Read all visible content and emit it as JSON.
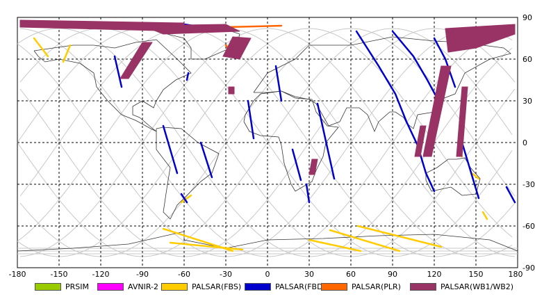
{
  "map": {
    "type": "world-coverage-map",
    "x_ticks": [
      "-180",
      "-150",
      "-120",
      "-90",
      "-60",
      "-30",
      "0",
      "30",
      "60",
      "90",
      "120",
      "150",
      "180"
    ],
    "y_ticks": [
      "90",
      "60",
      "30",
      "0",
      "-30",
      "-60",
      "-90"
    ],
    "x_range": [
      -180,
      180
    ],
    "y_range": [
      -90,
      90
    ],
    "grid": true
  },
  "legend": {
    "items": [
      {
        "label": "PRSIM",
        "color": "#99cc00"
      },
      {
        "label": "AVNIR-2",
        "color": "#ff00ff"
      },
      {
        "label": "PALSAR(FBS)",
        "color": "#ffcc00"
      },
      {
        "label": "PALSAR(FBD)",
        "color": "#0000cc"
      },
      {
        "label": "PALSAR(PLR)",
        "color": "#ff6600"
      },
      {
        "label": "PALSAR(WB1/WB2)",
        "color": "#993366"
      }
    ]
  },
  "chart_data": {
    "type": "scatter",
    "xlabel": "",
    "ylabel": "",
    "xlim": [
      -180,
      180
    ],
    "ylim": [
      -90,
      90
    ],
    "grid": true,
    "legend_position": "bottom",
    "series": [
      {
        "name": "PALSAR(FBS)",
        "color": "#ffcc00",
        "kind": "line",
        "paths": [
          [
            [
              -168,
              75
            ],
            [
              -158,
              62
            ]
          ],
          [
            [
              -142,
              70
            ],
            [
              -147,
              58
            ]
          ],
          [
            [
              -70,
              -72
            ],
            [
              -18,
              -77
            ]
          ],
          [
            [
              -75,
              -62
            ],
            [
              -25,
              -78
            ]
          ],
          [
            [
              -55,
              -38
            ],
            [
              -62,
              -43
            ]
          ],
          [
            [
              30,
              -70
            ],
            [
              67,
              -78
            ]
          ],
          [
            [
              45,
              -63
            ],
            [
              95,
              -78
            ]
          ],
          [
            [
              65,
              -60
            ],
            [
              125,
              -75
            ]
          ],
          [
            [
              155,
              -50
            ],
            [
              158,
              -55
            ]
          ],
          [
            [
              147,
              -22
            ],
            [
              152,
              -26
            ]
          ],
          [
            [
              138,
              -4
            ],
            [
              140,
              -10
            ]
          ]
        ]
      },
      {
        "name": "PALSAR(FBD)",
        "color": "#0000cc",
        "kind": "line",
        "paths": [
          [
            [
              -110,
              62
            ],
            [
              -105,
              40
            ]
          ],
          [
            [
              -60,
              85
            ],
            [
              -40,
              82
            ]
          ],
          [
            [
              -57,
              50
            ],
            [
              -58,
              45
            ]
          ],
          [
            [
              -75,
              12
            ],
            [
              -65,
              -22
            ]
          ],
          [
            [
              -48,
              0
            ],
            [
              -40,
              -25
            ]
          ],
          [
            [
              -62,
              -37
            ],
            [
              -58,
              -43
            ]
          ],
          [
            [
              -14,
              30
            ],
            [
              -10,
              3
            ]
          ],
          [
            [
              6,
              55
            ],
            [
              10,
              30
            ]
          ],
          [
            [
              18,
              -5
            ],
            [
              24,
              -27
            ]
          ],
          [
            [
              36,
              28
            ],
            [
              48,
              -26
            ]
          ],
          [
            [
              28,
              -30
            ],
            [
              30,
              -43
            ]
          ],
          [
            [
              64,
              80
            ],
            [
              80,
              55
            ],
            [
              92,
              35
            ],
            [
              100,
              15
            ],
            [
              108,
              -2
            ],
            [
              114,
              -22
            ],
            [
              120,
              -35
            ]
          ],
          [
            [
              90,
              80
            ],
            [
              105,
              62
            ],
            [
              115,
              45
            ],
            [
              122,
              32
            ]
          ],
          [
            [
              120,
              75
            ],
            [
              128,
              60
            ],
            [
              135,
              40
            ]
          ],
          [
            [
              140,
              0
            ],
            [
              152,
              -40
            ]
          ],
          [
            [
              172,
              -32
            ],
            [
              178,
              -43
            ]
          ]
        ]
      },
      {
        "name": "PALSAR(PLR)",
        "color": "#ff6600",
        "kind": "line",
        "paths": [
          [
            [
              -30,
              83
            ],
            [
              10,
              84
            ]
          ],
          [
            [
              -30,
              70
            ],
            [
              -28,
              67
            ]
          ]
        ]
      },
      {
        "name": "PALSAR(WB1/WB2)",
        "color": "#993366",
        "kind": "area",
        "polygons": [
          [
            [
              -178,
              88
            ],
            [
              -60,
              86
            ],
            [
              -60,
              80
            ],
            [
              -178,
              83
            ]
          ],
          [
            [
              -90,
              84
            ],
            [
              -30,
              85
            ],
            [
              -20,
              80
            ],
            [
              -75,
              78
            ]
          ],
          [
            [
              -90,
              72
            ],
            [
              -83,
              72
            ],
            [
              -100,
              46
            ],
            [
              -106,
              46
            ]
          ],
          [
            [
              -25,
              76
            ],
            [
              -12,
              75
            ],
            [
              -20,
              60
            ],
            [
              -32,
              62
            ]
          ],
          [
            [
              -28,
              40
            ],
            [
              -24,
              40
            ],
            [
              -24,
              35
            ],
            [
              -28,
              35
            ]
          ],
          [
            [
              32,
              -12
            ],
            [
              36,
              -12
            ],
            [
              34,
              -23
            ],
            [
              30,
              -23
            ]
          ],
          [
            [
              125,
              55
            ],
            [
              132,
              55
            ],
            [
              118,
              -10
            ],
            [
              112,
              -10
            ]
          ],
          [
            [
              110,
              12
            ],
            [
              114,
              12
            ],
            [
              110,
              -10
            ],
            [
              106,
              -10
            ]
          ],
          [
            [
              140,
              40
            ],
            [
              144,
              40
            ],
            [
              140,
              -10
            ],
            [
              136,
              -10
            ]
          ],
          [
            [
              128,
              82
            ],
            [
              178,
              85
            ],
            [
              178,
              78
            ],
            [
              150,
              68
            ],
            [
              130,
              65
            ]
          ]
        ]
      }
    ]
  }
}
